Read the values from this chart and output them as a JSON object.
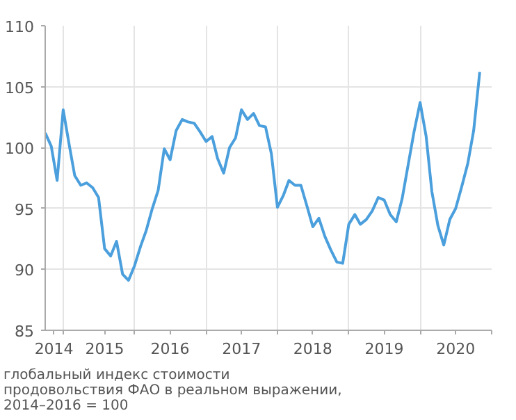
{
  "chart_data": {
    "type": "line",
    "x": [
      "2014-10",
      "2014-11",
      "2014-12",
      "2015-01",
      "2015-02",
      "2015-03",
      "2015-04",
      "2015-05",
      "2015-06",
      "2015-07",
      "2015-08",
      "2015-09",
      "2015-10",
      "2015-11",
      "2015-12",
      "2016-01",
      "2016-02",
      "2016-03",
      "2016-04",
      "2016-05",
      "2016-06",
      "2016-07",
      "2016-08",
      "2016-09",
      "2016-10",
      "2016-11",
      "2016-12",
      "2017-01",
      "2017-02",
      "2017-03",
      "2017-04",
      "2017-05",
      "2017-06",
      "2017-07",
      "2017-08",
      "2017-09",
      "2017-10",
      "2017-11",
      "2017-12",
      "2018-01",
      "2018-02",
      "2018-03",
      "2018-04",
      "2018-05",
      "2018-06",
      "2018-07",
      "2018-08",
      "2018-09",
      "2018-10",
      "2018-11",
      "2018-12",
      "2019-01",
      "2019-02",
      "2019-03",
      "2019-04",
      "2019-05",
      "2019-06",
      "2019-07",
      "2019-08",
      "2019-09",
      "2019-10",
      "2019-11",
      "2019-12",
      "2020-01",
      "2020-02",
      "2020-03",
      "2020-04",
      "2020-05",
      "2020-06",
      "2020-07",
      "2020-08",
      "2020-09",
      "2020-10",
      "2020-11"
    ],
    "series": [
      {
        "color": "#4a9fdc",
        "values": [
          101.2,
          100.1,
          97.3,
          103.1,
          100.2,
          97.7,
          96.9,
          97.1,
          96.7,
          95.9,
          91.7,
          91.1,
          92.3,
          89.6,
          89.1,
          90.3,
          91.9,
          93.2,
          95.0,
          96.5,
          99.9,
          99.0,
          101.4,
          102.3,
          102.1,
          102.0,
          101.3,
          100.5,
          100.9,
          99.1,
          97.9,
          100.0,
          100.8,
          103.1,
          102.3,
          102.8,
          101.8,
          101.7,
          99.5,
          95.1,
          96.1,
          97.3,
          96.9,
          96.9,
          95.2,
          93.5,
          94.2,
          92.7,
          91.6,
          90.6,
          90.5,
          93.7,
          94.5,
          93.7,
          94.1,
          94.8,
          95.9,
          95.7,
          94.5,
          93.9,
          95.8,
          98.6,
          101.3,
          103.7,
          100.9,
          96.4,
          93.6,
          92.0,
          94.1,
          95.0,
          96.8,
          98.7,
          101.4,
          106.2
        ]
      }
    ],
    "xlim": [
      "2014-10",
      "2021-01"
    ],
    "ylim": [
      85,
      110
    ],
    "yticks": [
      85,
      90,
      95,
      100,
      105,
      110
    ],
    "xticks": [
      {
        "value": "2014-11-15",
        "label": "2014"
      },
      {
        "value": "2015-01",
        "label": null
      },
      {
        "value": "2015-08",
        "label": "2015"
      },
      {
        "value": "2016-01",
        "label": null
      },
      {
        "value": "2016-07",
        "label": "2016"
      },
      {
        "value": "2017-01",
        "label": null
      },
      {
        "value": "2017-07",
        "label": "2017"
      },
      {
        "value": "2018-01",
        "label": null
      },
      {
        "value": "2018-07",
        "label": "2018"
      },
      {
        "value": "2019-01",
        "label": null
      },
      {
        "value": "2019-07",
        "label": "2019"
      },
      {
        "value": "2020-01",
        "label": null
      },
      {
        "value": "2020-07",
        "label": "2020"
      },
      {
        "value": "2021-01",
        "label": null
      }
    ],
    "grid": true,
    "marker": "none",
    "line_style": "solid",
    "annotations": [
      "глобальный индекс стоимости\nпродовольствия ФАО в реальном выражении,\n2014–2016 = 100"
    ]
  }
}
